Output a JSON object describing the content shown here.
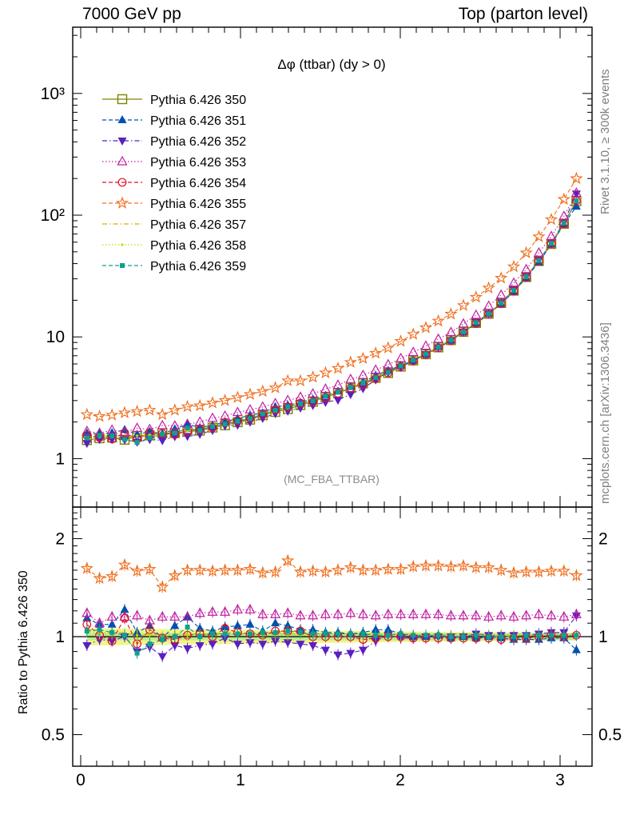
{
  "header": {
    "left": "7000 GeV pp",
    "right": "Top (parton level)"
  },
  "side_labels": {
    "rivet": "Rivet 3.1.10, ≥ 300k events",
    "mcplots": "mcplots.cern.ch [arXiv:1306.3436]"
  },
  "chart_data": [
    {
      "type": "line",
      "title": "Δφ (ttbar) (dy > 0)",
      "watermark": "(MC_FBA_TTBAR)",
      "xlabel": "",
      "ylabel": "",
      "yscale": "log",
      "ylim": [
        0.4,
        3500
      ],
      "xlim": [
        -0.05,
        3.2
      ],
      "yticks": [
        1,
        10,
        100,
        1000
      ],
      "ytick_labels": [
        "1",
        "10",
        "10²",
        "10³"
      ],
      "legend_position": "top-left",
      "x": [
        0.039,
        0.118,
        0.196,
        0.275,
        0.353,
        0.432,
        0.511,
        0.589,
        0.668,
        0.746,
        0.825,
        0.903,
        0.982,
        1.06,
        1.139,
        1.218,
        1.296,
        1.375,
        1.453,
        1.532,
        1.61,
        1.689,
        1.767,
        1.846,
        1.924,
        2.003,
        2.081,
        2.16,
        2.238,
        2.317,
        2.395,
        2.474,
        2.553,
        2.631,
        2.71,
        2.788,
        2.867,
        2.945,
        3.024,
        3.102
      ],
      "series": [
        {
          "name": "Pythia 6.426 350",
          "color": "#808000",
          "marker": "square-open",
          "dash": "solid",
          "values": [
            1.42,
            1.47,
            1.49,
            1.43,
            1.53,
            1.55,
            1.62,
            1.62,
            1.67,
            1.7,
            1.8,
            1.88,
            1.99,
            2.09,
            2.27,
            2.42,
            2.55,
            2.75,
            2.93,
            3.2,
            3.45,
            3.8,
            4.15,
            4.6,
            5.05,
            5.7,
            6.4,
            7.2,
            8.2,
            9.4,
            11.0,
            13.0,
            15.5,
            19.0,
            24.0,
            31.0,
            42.0,
            58.0,
            85.0,
            130.0
          ]
        },
        {
          "name": "Pythia 6.426 351",
          "color": "#0050b0",
          "marker": "triangle-up-filled",
          "dash": "dashed",
          "values": [
            1.62,
            1.6,
            1.63,
            1.73,
            1.58,
            1.67,
            1.6,
            1.75,
            1.92,
            1.8,
            1.88,
            2.01,
            2.14,
            2.28,
            2.37,
            2.66,
            2.75,
            2.89,
            3.08,
            3.3,
            3.57,
            3.89,
            4.26,
            4.83,
            5.3,
            5.83,
            6.4,
            7.2,
            8.3,
            9.35,
            11.0,
            12.9,
            15.5,
            18.8,
            23.5,
            30.5,
            41.0,
            57.5,
            84.0,
            118.0
          ]
        },
        {
          "name": "Pythia 6.426 352",
          "color": "#5a1fc0",
          "marker": "triangle-down-filled",
          "dash": "dashdot",
          "values": [
            1.34,
            1.44,
            1.44,
            1.43,
            1.37,
            1.44,
            1.41,
            1.52,
            1.53,
            1.59,
            1.71,
            1.86,
            1.89,
            2.0,
            2.15,
            2.35,
            2.46,
            2.61,
            2.74,
            2.91,
            3.03,
            3.37,
            3.77,
            4.44,
            5.1,
            5.65,
            6.35,
            7.2,
            8.2,
            9.4,
            11.0,
            13.2,
            15.6,
            19.2,
            24.3,
            31.4,
            42.8,
            59.5,
            87.5,
            150.0
          ]
        },
        {
          "name": "Pythia 6.426 353",
          "color": "#c01fa0",
          "marker": "triangle-up-open",
          "dash": "dotted",
          "values": [
            1.68,
            1.62,
            1.72,
            1.64,
            1.78,
            1.74,
            1.87,
            1.86,
            1.92,
            2.0,
            2.15,
            2.24,
            2.4,
            2.52,
            2.66,
            2.84,
            3.01,
            3.2,
            3.41,
            3.73,
            4.02,
            4.48,
            4.84,
            5.35,
            5.92,
            6.65,
            7.48,
            8.42,
            9.6,
            10.9,
            12.8,
            15.1,
            17.9,
            22.1,
            27.7,
            35.8,
            49.0,
            67.0,
            98.0,
            152.0
          ]
        },
        {
          "name": "Pythia 6.426 354",
          "color": "#e0102a",
          "marker": "circle-open",
          "dash": "dashed",
          "values": [
            1.55,
            1.49,
            1.45,
            1.63,
            1.45,
            1.63,
            1.61,
            1.58,
            1.68,
            1.73,
            1.8,
            1.99,
            2.05,
            2.14,
            2.3,
            2.52,
            2.66,
            2.86,
            2.92,
            3.19,
            3.44,
            3.8,
            4.07,
            4.56,
            5.05,
            5.7,
            6.35,
            7.12,
            8.12,
            9.3,
            10.9,
            12.9,
            15.3,
            18.7,
            23.7,
            30.8,
            42.0,
            58.3,
            85.0,
            131.0
          ]
        },
        {
          "name": "Pythia 6.426 355",
          "color": "#f07020",
          "marker": "star-open",
          "dash": "dashed",
          "values": [
            2.3,
            2.22,
            2.28,
            2.38,
            2.44,
            2.5,
            2.3,
            2.5,
            2.67,
            2.72,
            2.87,
            3.0,
            3.18,
            3.37,
            3.57,
            3.82,
            4.36,
            4.35,
            4.67,
            5.07,
            5.51,
            6.18,
            6.65,
            7.35,
            8.12,
            9.2,
            10.5,
            11.9,
            13.5,
            15.4,
            18.1,
            21.2,
            25.2,
            30.4,
            37.7,
            49.0,
            66.5,
            92.0,
            135.0,
            200.0
          ]
        },
        {
          "name": "Pythia 6.426 357",
          "color": "#d8b000",
          "marker": "none",
          "dash": "dashdot",
          "values": [
            1.5,
            1.52,
            1.54,
            1.47,
            1.55,
            1.56,
            1.63,
            1.65,
            1.7,
            1.74,
            1.84,
            1.93,
            2.04,
            2.14,
            2.32,
            2.47,
            2.6,
            2.8,
            2.99,
            3.26,
            3.52,
            3.87,
            4.23,
            4.7,
            5.15,
            5.8,
            6.5,
            7.3,
            8.3,
            9.55,
            11.2,
            13.2,
            15.7,
            19.2,
            24.3,
            31.4,
            42.5,
            59.0,
            86.5,
            132.0
          ]
        },
        {
          "name": "Pythia 6.426 358",
          "color": "#c8d800",
          "marker": "dot",
          "dash": "dotted",
          "values": [
            1.47,
            1.5,
            1.52,
            1.46,
            1.54,
            1.57,
            1.62,
            1.63,
            1.69,
            1.72,
            1.82,
            1.91,
            2.02,
            2.12,
            2.3,
            2.45,
            2.58,
            2.78,
            2.96,
            3.23,
            3.49,
            3.84,
            4.2,
            4.66,
            5.11,
            5.76,
            6.46,
            7.26,
            8.27,
            9.48,
            11.1,
            13.1,
            15.6,
            19.1,
            24.2,
            31.3,
            42.4,
            58.6,
            86.0,
            131.0
          ]
        },
        {
          "name": "Pythia 6.426 359",
          "color": "#10a090",
          "marker": "square-filled",
          "dash": "dashed",
          "values": [
            1.48,
            1.55,
            1.53,
            1.44,
            1.36,
            1.48,
            1.59,
            1.62,
            1.78,
            1.7,
            1.84,
            1.92,
            2.03,
            2.13,
            2.33,
            2.49,
            2.66,
            2.82,
            2.98,
            3.27,
            3.53,
            3.86,
            4.22,
            4.63,
            5.1,
            5.79,
            6.46,
            7.24,
            8.25,
            9.44,
            11.0,
            13.1,
            15.5,
            19.0,
            24.1,
            31.2,
            42.4,
            58.8,
            86.2,
            131.0
          ]
        }
      ]
    },
    {
      "type": "line",
      "title": "",
      "xlabel": "",
      "ylabel": "Ratio to Pythia 6.426 350",
      "yscale": "log",
      "ylim": [
        0.4,
        2.5
      ],
      "xlim": [
        -0.05,
        3.2
      ],
      "yticks": [
        0.5,
        1,
        2
      ],
      "ytick_labels": [
        "0.5",
        "1",
        "2"
      ],
      "xticks": [
        0,
        1,
        2,
        3
      ],
      "xtick_labels": [
        "0",
        "1",
        "2",
        "3"
      ],
      "reference_band": "yellow-green uncertainty band around 1",
      "reference_line": 1,
      "series_ratio": [
        {
          "name": "Pythia 6.426 351",
          "values": [
            1.14,
            1.09,
            1.09,
            1.21,
            1.03,
            1.08,
            0.99,
            1.08,
            1.15,
            1.06,
            1.04,
            1.07,
            1.08,
            1.09,
            1.04,
            1.1,
            1.08,
            1.05,
            1.05,
            1.03,
            1.03,
            1.02,
            1.03,
            1.05,
            1.05,
            1.02,
            1.0,
            1.0,
            1.01,
            0.99,
            1.0,
            0.99,
            1.0,
            0.99,
            0.98,
            0.98,
            0.98,
            0.99,
            0.99,
            0.91
          ]
        },
        {
          "name": "Pythia 6.426 352",
          "values": [
            0.94,
            0.98,
            0.97,
            1.0,
            0.9,
            0.93,
            0.87,
            0.94,
            0.92,
            0.94,
            0.95,
            0.99,
            0.95,
            0.96,
            0.95,
            0.97,
            0.96,
            0.95,
            0.94,
            0.91,
            0.88,
            0.89,
            0.91,
            0.97,
            1.01,
            0.99,
            0.99,
            1.0,
            1.0,
            1.0,
            1.0,
            1.02,
            1.01,
            1.01,
            1.01,
            1.01,
            1.02,
            1.03,
            1.03,
            1.16
          ]
        },
        {
          "name": "Pythia 6.426 353",
          "values": [
            1.18,
            1.1,
            1.15,
            1.15,
            1.16,
            1.12,
            1.15,
            1.15,
            1.15,
            1.18,
            1.19,
            1.19,
            1.21,
            1.21,
            1.17,
            1.17,
            1.18,
            1.16,
            1.16,
            1.17,
            1.17,
            1.18,
            1.17,
            1.16,
            1.17,
            1.17,
            1.17,
            1.17,
            1.17,
            1.16,
            1.16,
            1.16,
            1.15,
            1.16,
            1.15,
            1.16,
            1.17,
            1.16,
            1.15,
            1.17
          ]
        },
        {
          "name": "Pythia 6.426 354",
          "values": [
            1.09,
            1.01,
            0.97,
            1.14,
            0.95,
            1.05,
            0.99,
            0.98,
            1.01,
            1.02,
            1.0,
            1.06,
            1.03,
            1.02,
            1.01,
            1.04,
            1.04,
            1.04,
            1.0,
            1.0,
            1.0,
            1.0,
            0.98,
            0.99,
            1.0,
            1.0,
            0.99,
            0.99,
            0.99,
            0.99,
            0.99,
            0.99,
            0.99,
            0.98,
            0.99,
            0.99,
            1.0,
            1.01,
            1.0,
            1.01
          ]
        },
        {
          "name": "Pythia 6.426 355",
          "values": [
            1.62,
            1.51,
            1.53,
            1.66,
            1.59,
            1.61,
            1.42,
            1.54,
            1.6,
            1.6,
            1.59,
            1.6,
            1.6,
            1.61,
            1.57,
            1.58,
            1.71,
            1.58,
            1.59,
            1.58,
            1.6,
            1.63,
            1.6,
            1.6,
            1.61,
            1.61,
            1.64,
            1.65,
            1.65,
            1.64,
            1.65,
            1.63,
            1.63,
            1.6,
            1.57,
            1.58,
            1.58,
            1.59,
            1.59,
            1.54
          ]
        },
        {
          "name": "Pythia 6.426 357",
          "values": [
            1.06,
            1.03,
            1.03,
            1.03,
            1.01,
            1.01,
            1.01,
            1.02,
            1.02,
            1.02,
            1.02,
            1.03,
            1.03,
            1.02,
            1.02,
            1.02,
            1.02,
            1.02,
            1.02,
            1.02,
            1.02,
            1.02,
            1.02,
            1.02,
            1.02,
            1.02,
            1.02,
            1.01,
            1.01,
            1.02,
            1.02,
            1.02,
            1.01,
            1.01,
            1.01,
            1.01,
            1.01,
            1.02,
            1.02,
            1.02
          ]
        },
        {
          "name": "Pythia 6.426 358",
          "values": [
            1.04,
            1.02,
            1.02,
            1.02,
            1.01,
            1.01,
            1.0,
            1.01,
            1.01,
            1.01,
            1.01,
            1.02,
            1.02,
            1.01,
            1.01,
            1.01,
            1.01,
            1.01,
            1.01,
            1.01,
            1.01,
            1.01,
            1.01,
            1.01,
            1.01,
            1.01,
            1.01,
            1.01,
            1.01,
            1.01,
            1.01,
            1.01,
            1.01,
            1.01,
            1.01,
            1.01,
            1.01,
            1.01,
            1.01,
            1.01
          ]
        },
        {
          "name": "Pythia 6.426 359",
          "values": [
            1.04,
            1.05,
            1.03,
            1.01,
            0.89,
            0.95,
            0.98,
            1.0,
            1.07,
            1.0,
            1.02,
            1.02,
            1.02,
            1.02,
            1.03,
            1.03,
            1.04,
            1.03,
            1.02,
            1.02,
            1.02,
            1.02,
            1.02,
            1.01,
            1.01,
            1.02,
            1.01,
            1.01,
            1.01,
            1.0,
            1.0,
            1.01,
            1.0,
            1.0,
            1.0,
            1.01,
            1.01,
            1.01,
            1.01,
            1.01
          ]
        }
      ]
    }
  ]
}
